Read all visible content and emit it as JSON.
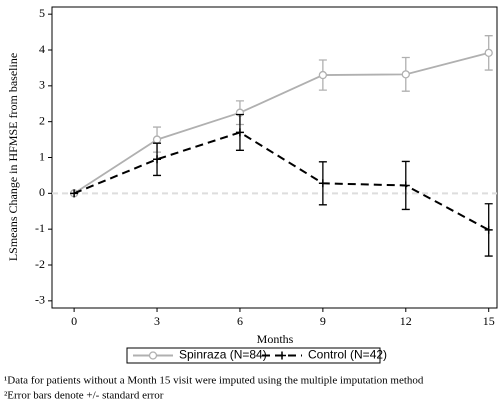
{
  "chart_data": {
    "type": "line",
    "x_label": "Months",
    "y_label": "LSmeans Change in HFMSE from baseline",
    "x": [
      0,
      3,
      6,
      9,
      12,
      15
    ],
    "series": [
      {
        "name": "Spinraza (N=84)",
        "color": "#b0b0b0",
        "dash": false,
        "marker": "circle",
        "values": [
          0,
          1.5,
          2.25,
          3.3,
          3.32,
          3.92
        ],
        "errors": [
          null,
          0.35,
          0.33,
          0.42,
          0.47,
          0.48
        ]
      },
      {
        "name": "Control (N=42)",
        "color": "#000000",
        "dash": true,
        "marker": "plus",
        "values": [
          0,
          0.95,
          1.7,
          0.28,
          0.22,
          -1.02
        ],
        "errors": [
          null,
          0.45,
          0.5,
          0.6,
          0.67,
          0.73
        ]
      }
    ],
    "xlim": [
      -0.8,
      15.3
    ],
    "xticks": [
      0,
      3,
      6,
      9,
      12,
      15
    ],
    "ylim": [
      -3.2,
      5.2
    ],
    "yticks": [
      -3,
      -2,
      -1,
      0,
      1,
      2,
      3,
      4,
      5
    ],
    "reference_line": 0,
    "legend": "bottom",
    "footnotes": [
      "¹Data for patients without a Month 15 visit were imputed using the multiple imputation method",
      "²Error bars denote +/- standard error"
    ]
  }
}
